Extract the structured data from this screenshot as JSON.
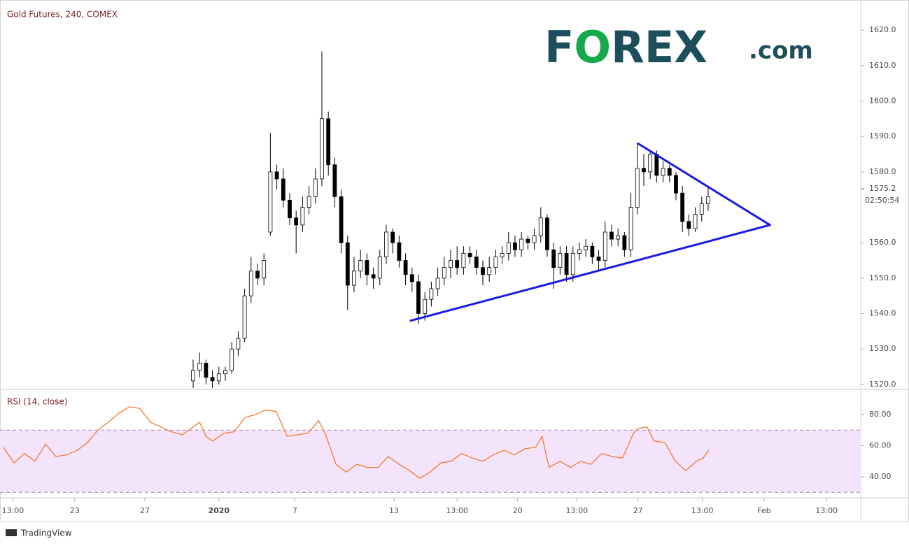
{
  "chart_data": [
    {
      "type": "candlestick",
      "title": "Gold Futures, 240, COMEX",
      "open": [
        1521,
        1524,
        1526,
        1522,
        1521,
        1523,
        1524,
        1530,
        1533,
        1545,
        1552,
        1550,
        1563,
        1580,
        1578,
        1572,
        1567,
        1565,
        1570,
        1573,
        1578,
        1595,
        1582,
        1573,
        1560,
        1548,
        1552,
        1555,
        1551,
        1550,
        1556,
        1563,
        1560,
        1555,
        1551,
        1549,
        1540,
        1544,
        1547,
        1550,
        1553,
        1555,
        1553,
        1557,
        1556,
        1553,
        1551,
        1553,
        1556,
        1557,
        1560,
        1558,
        1561,
        1560,
        1562,
        1567,
        1558,
        1553,
        1557,
        1551,
        1557,
        1558,
        1559,
        1556,
        1555,
        1563,
        1561,
        1562,
        1558,
        1570,
        1581,
        1580,
        1585,
        1579,
        1581,
        1579,
        1574,
        1566,
        1564,
        1568,
        1571
      ],
      "high": [
        1527,
        1529,
        1527,
        1524,
        1525,
        1525,
        1532,
        1535,
        1547,
        1556,
        1554,
        1557,
        1591,
        1582,
        1581,
        1574,
        1569,
        1573,
        1576,
        1581,
        1614,
        1597,
        1584,
        1575,
        1562,
        1556,
        1558,
        1557,
        1553,
        1558,
        1565,
        1564,
        1562,
        1557,
        1553,
        1551,
        1546,
        1549,
        1553,
        1556,
        1558,
        1559,
        1559,
        1559,
        1558,
        1555,
        1556,
        1558,
        1559,
        1563,
        1562,
        1563,
        1562,
        1564,
        1570,
        1568,
        1560,
        1559,
        1559,
        1559,
        1560,
        1561,
        1560,
        1558,
        1566,
        1565,
        1564,
        1563,
        1574,
        1588,
        1585,
        1586,
        1586,
        1583,
        1582,
        1580,
        1576,
        1568,
        1570,
        1573,
        1576
      ],
      "low": [
        1519,
        1522,
        1520,
        1519,
        1520,
        1521,
        1523,
        1528,
        1532,
        1543,
        1548,
        1548,
        1562,
        1575,
        1570,
        1565,
        1557,
        1563,
        1568,
        1571,
        1576,
        1579,
        1570,
        1557,
        1541,
        1546,
        1550,
        1548,
        1547,
        1548,
        1554,
        1557,
        1553,
        1548,
        1546,
        1537,
        1538,
        1542,
        1545,
        1548,
        1550,
        1551,
        1551,
        1554,
        1551,
        1548,
        1549,
        1551,
        1554,
        1555,
        1556,
        1556,
        1558,
        1558,
        1560,
        1556,
        1547,
        1551,
        1549,
        1549,
        1555,
        1556,
        1554,
        1552,
        1553,
        1559,
        1559,
        1556,
        1556,
        1568,
        1576,
        1578,
        1577,
        1577,
        1577,
        1572,
        1563,
        1562,
        1563,
        1566,
        1569
      ],
      "close": [
        1524,
        1526,
        1522,
        1521,
        1523,
        1524,
        1530,
        1533,
        1545,
        1552,
        1550,
        1555,
        1580,
        1578,
        1572,
        1567,
        1565,
        1570,
        1573,
        1578,
        1595,
        1582,
        1573,
        1560,
        1548,
        1552,
        1555,
        1551,
        1550,
        1556,
        1563,
        1560,
        1555,
        1551,
        1549,
        1540,
        1544,
        1547,
        1550,
        1553,
        1555,
        1553,
        1557,
        1556,
        1553,
        1551,
        1553,
        1556,
        1557,
        1560,
        1558,
        1561,
        1560,
        1562,
        1567,
        1558,
        1553,
        1557,
        1551,
        1557,
        1558,
        1559,
        1556,
        1555,
        1563,
        1561,
        1562,
        1558,
        1570,
        1581,
        1580,
        1585,
        1579,
        1581,
        1579,
        1574,
        1566,
        1564,
        1568,
        1571,
        1573
      ],
      "up_color": "#ffffff",
      "down_color": "#000000",
      "xlim": [
        -30,
        103.7
      ],
      "ylim": [
        1518.6,
        1628.5
      ],
      "xticks": [
        {
          "value": -28,
          "label": "13:00"
        },
        {
          "value": -18.4,
          "label": "23"
        },
        {
          "value": -7.5,
          "label": "27"
        },
        {
          "value": 4,
          "label": "2020"
        },
        {
          "value": 15.8,
          "label": "7"
        },
        {
          "value": 31.2,
          "label": "13"
        },
        {
          "value": 41,
          "label": "13:00"
        },
        {
          "value": 50.4,
          "label": "20"
        },
        {
          "value": 59.6,
          "label": "13:00"
        },
        {
          "value": 69.1,
          "label": "27"
        },
        {
          "value": 79.1,
          "label": "13:00"
        },
        {
          "value": 88.7,
          "label": "Feb"
        },
        {
          "value": 98.4,
          "label": "13:00"
        }
      ],
      "yticks": [
        {
          "value": 1520,
          "label": "1520.0"
        },
        {
          "value": 1530,
          "label": "1530.0"
        },
        {
          "value": 1540,
          "label": "1540.0"
        },
        {
          "value": 1550,
          "label": "1550.0"
        },
        {
          "value": 1560,
          "label": "1560.0"
        },
        {
          "value": 1580,
          "label": "1580.0"
        },
        {
          "value": 1590,
          "label": "1590.0"
        },
        {
          "value": 1600,
          "label": "1600.0"
        },
        {
          "value": 1610,
          "label": "1610.0"
        },
        {
          "value": 1620,
          "label": "1620.0"
        }
      ],
      "last_price": {
        "value": 1575.2,
        "label": "1575.2",
        "countdown": "02:50:54"
      },
      "trendlines": [
        {
          "color": "#1a1ae6",
          "x": [
            69.1,
            89.6
          ],
          "y": [
            1588,
            1565
          ]
        },
        {
          "color": "#1a1ae6",
          "x": [
            33.8,
            89.6
          ],
          "y": [
            1538,
            1565
          ]
        }
      ],
      "logo": {
        "main": "FOREX",
        "suffix": ".com",
        "accent_color": "#16a84a"
      },
      "footer": "TradingView"
    },
    {
      "type": "line",
      "title": "RSI (14, close)",
      "series": [
        {
          "name": "RSI",
          "color": "#f57c2a",
          "x": [
            -29.5,
            -27.8,
            -26.2,
            -24.6,
            -22.9,
            -21.3,
            -19.7,
            -18,
            -16.4,
            -14.8,
            -13.2,
            -11.5,
            -9.9,
            -8.3,
            -6.6,
            -5,
            -3.4,
            -1.7,
            0,
            1,
            2,
            3,
            4.8,
            6.4,
            8,
            9.7,
            11.3,
            12.9,
            14.6,
            16.2,
            17.8,
            19.5,
            20.5,
            22.2,
            23.8,
            25.4,
            27.1,
            28.7,
            30.3,
            32,
            33.6,
            35.2,
            36.8,
            38.5,
            40.1,
            41.7,
            43.4,
            45,
            46.6,
            48.3,
            49.9,
            51.5,
            53.2,
            54.2,
            55.3,
            57,
            58.6,
            60.2,
            61.8,
            63.5,
            65.1,
            66.7,
            68.4,
            69.1,
            70.5,
            71.6,
            73.3,
            74.9,
            76.5,
            78.2,
            79.2,
            80.1
          ],
          "values": [
            59,
            49,
            55,
            50,
            61,
            53,
            54,
            57,
            62,
            70,
            75,
            81,
            85,
            84,
            75,
            72,
            69,
            67,
            72,
            75,
            66,
            63,
            68,
            69,
            78,
            80,
            83,
            82,
            66,
            67,
            68,
            76,
            68,
            48,
            43,
            48,
            46,
            46,
            53,
            48,
            44,
            39,
            43,
            49,
            50,
            55,
            52,
            50,
            54,
            57,
            54,
            58,
            59,
            66,
            46,
            50,
            46,
            50,
            48,
            55,
            53,
            52,
            68,
            71,
            72,
            63,
            62,
            50,
            44,
            50,
            52,
            57
          ]
        }
      ],
      "band": [
        30,
        70
      ],
      "band_color": "#f3e3fb",
      "ylim": [
        26.5,
        96.2
      ],
      "yticks": [
        {
          "value": 40,
          "label": "40.00"
        },
        {
          "value": 60,
          "label": "60.00"
        },
        {
          "value": 80,
          "label": "80.00"
        }
      ]
    }
  ]
}
